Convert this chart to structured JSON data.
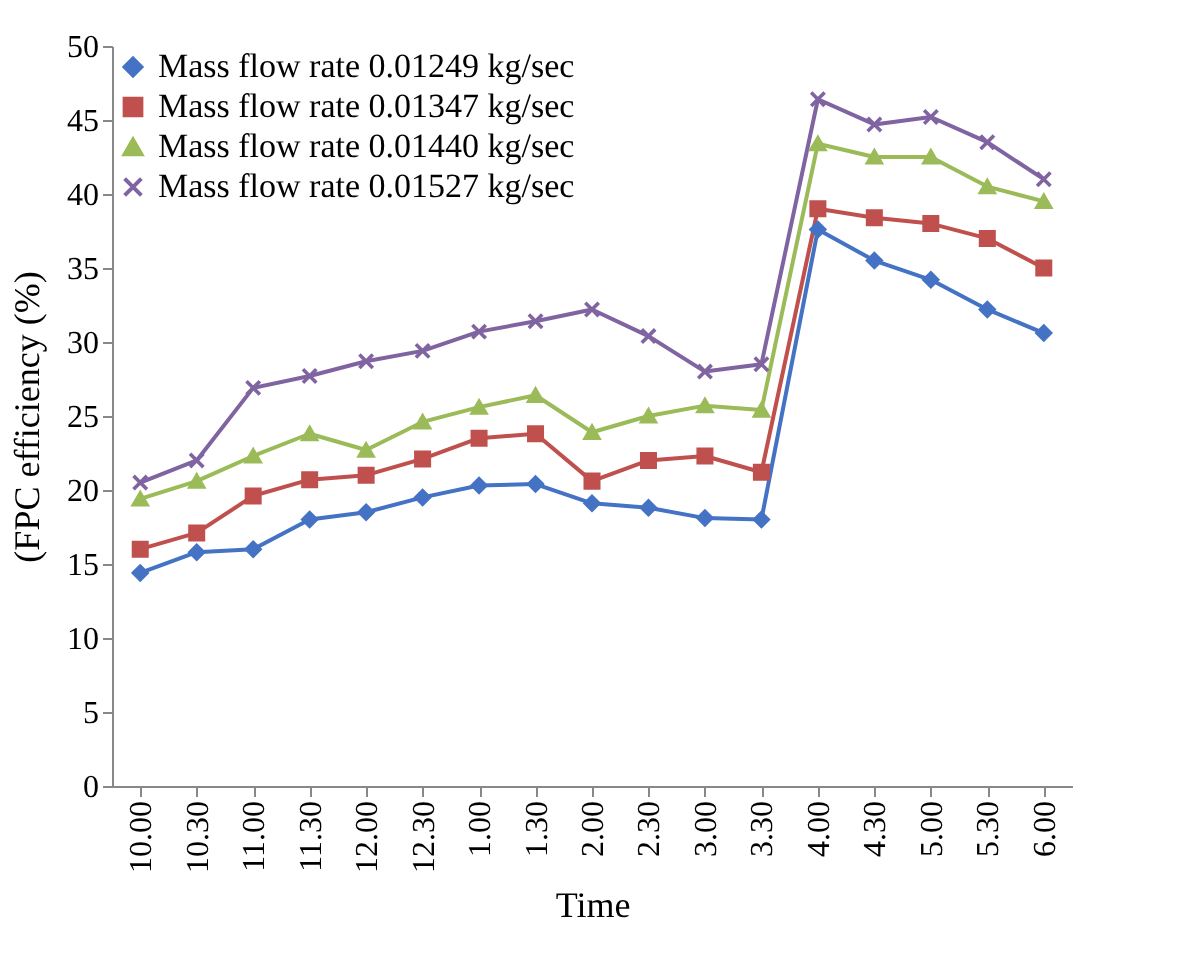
{
  "chart_data": {
    "type": "line",
    "xlabel": "Time",
    "ylabel": "(FPC  efficiency (%)",
    "categories": [
      "10.00",
      "10.30",
      "11.00",
      "11.30",
      "12.00",
      "12.30",
      "1.00",
      "1.30",
      "2.00",
      "2.30",
      "3.00",
      "3.30",
      "4.00",
      "4.30",
      "5.00",
      "5.30",
      "6.00"
    ],
    "ylim": [
      0,
      50
    ],
    "yticks": [
      0,
      5,
      10,
      15,
      20,
      25,
      30,
      35,
      40,
      45,
      50
    ],
    "grid": false,
    "legend": "top left",
    "line_style": "solid",
    "series": [
      {
        "name": "Mass flow rate 0.01249 kg/sec",
        "color": "#4472c4",
        "marker": "diamond",
        "values": [
          14.4,
          15.8,
          16.0,
          18.0,
          18.5,
          19.5,
          20.3,
          20.4,
          19.1,
          18.8,
          18.1,
          18.0,
          37.6,
          35.5,
          34.2,
          32.2,
          30.6
        ]
      },
      {
        "name": "Mass flow rate 0.01347 kg/sec",
        "color": "#c0504d",
        "marker": "square",
        "values": [
          16.0,
          17.1,
          19.6,
          20.7,
          21.0,
          22.1,
          23.5,
          23.8,
          20.6,
          22.0,
          22.3,
          21.2,
          39.0,
          38.4,
          38.0,
          37.0,
          35.0
        ]
      },
      {
        "name": "Mass flow rate 0.01440 kg/sec",
        "color": "#9bbb59",
        "marker": "triangle",
        "values": [
          19.4,
          20.6,
          22.3,
          23.8,
          22.7,
          24.6,
          25.6,
          26.4,
          23.9,
          25.0,
          25.7,
          25.4,
          43.4,
          42.5,
          42.5,
          40.5,
          39.5
        ]
      },
      {
        "name": "Mass flow rate 0.01527 kg/sec",
        "color": "#8064a2",
        "marker": "cross",
        "values": [
          20.5,
          22.0,
          26.9,
          27.7,
          28.7,
          29.4,
          30.7,
          31.4,
          32.2,
          30.4,
          28.0,
          28.5,
          46.4,
          44.7,
          45.2,
          43.5,
          41.0
        ]
      }
    ]
  }
}
